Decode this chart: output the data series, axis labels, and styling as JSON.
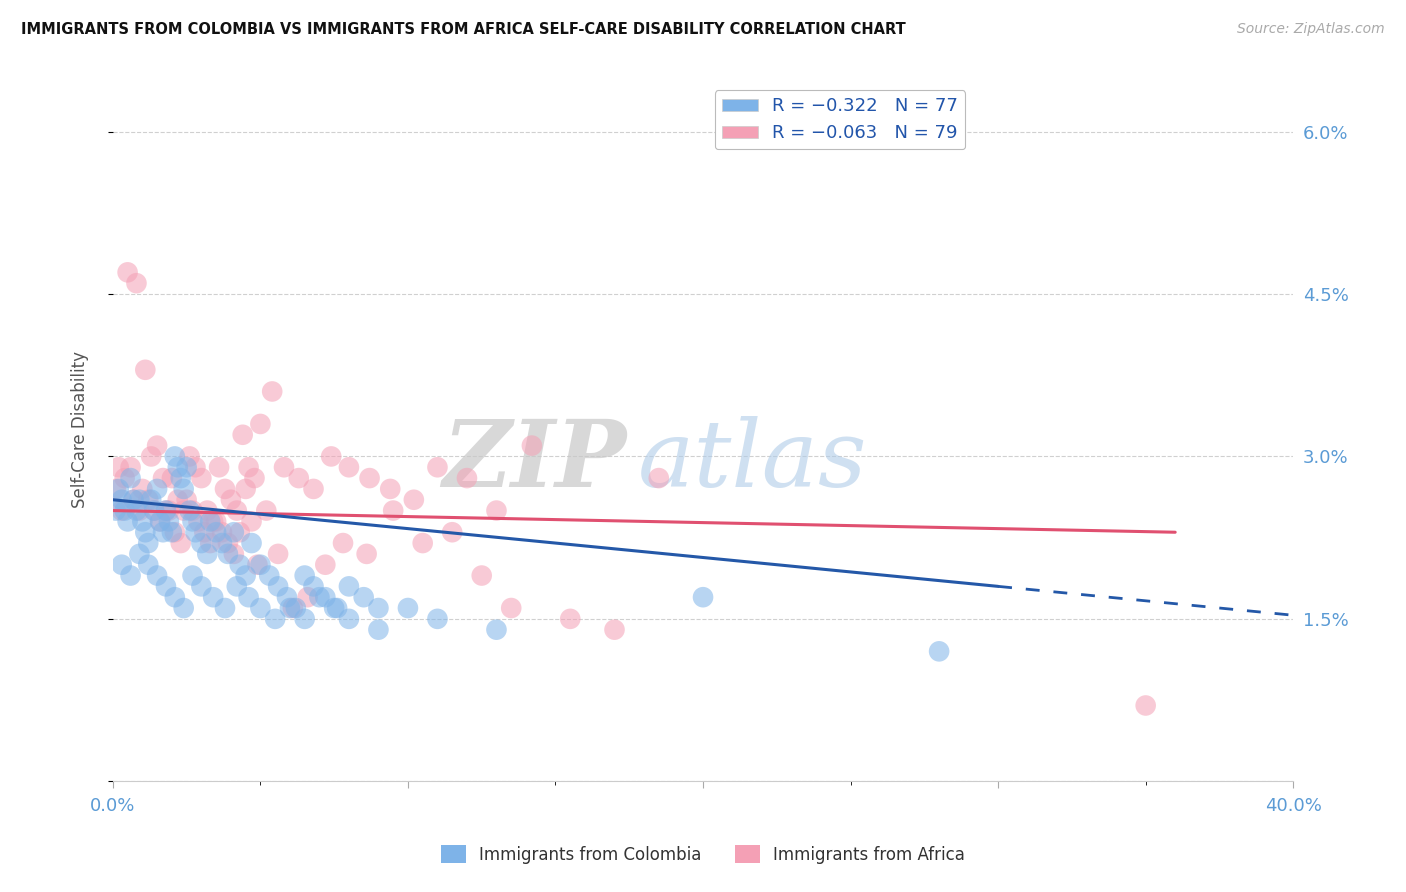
{
  "title": "IMMIGRANTS FROM COLOMBIA VS IMMIGRANTS FROM AFRICA SELF-CARE DISABILITY CORRELATION CHART",
  "source": "Source: ZipAtlas.com",
  "ylabel": "Self-Care Disability",
  "xlim": [
    0.0,
    0.4
  ],
  "ylim": [
    0.0,
    0.065
  ],
  "yticks": [
    0.0,
    0.015,
    0.03,
    0.045,
    0.06
  ],
  "yticklabels_right": [
    "",
    "1.5%",
    "3.0%",
    "4.5%",
    "6.0%"
  ],
  "legend_blue_text": "R = −0.322   N = 77",
  "legend_pink_text": "R = −0.063   N = 79",
  "color_blue": "#7eb3e8",
  "color_pink": "#f4a0b5",
  "color_line_blue": "#2458a8",
  "color_line_pink": "#e05070",
  "color_grid": "#cccccc",
  "color_axis_labels": "#5b9bd5",
  "colombia_x": [
    0.001,
    0.002,
    0.003,
    0.004,
    0.005,
    0.006,
    0.007,
    0.008,
    0.009,
    0.01,
    0.011,
    0.012,
    0.013,
    0.014,
    0.015,
    0.016,
    0.017,
    0.018,
    0.019,
    0.02,
    0.021,
    0.022,
    0.023,
    0.024,
    0.025,
    0.026,
    0.027,
    0.028,
    0.03,
    0.032,
    0.033,
    0.035,
    0.037,
    0.039,
    0.041,
    0.043,
    0.045,
    0.047,
    0.05,
    0.053,
    0.056,
    0.059,
    0.062,
    0.065,
    0.068,
    0.072,
    0.076,
    0.08,
    0.085,
    0.09,
    0.003,
    0.006,
    0.009,
    0.012,
    0.015,
    0.018,
    0.021,
    0.024,
    0.027,
    0.03,
    0.034,
    0.038,
    0.042,
    0.046,
    0.05,
    0.055,
    0.06,
    0.065,
    0.07,
    0.075,
    0.08,
    0.09,
    0.1,
    0.11,
    0.13,
    0.2,
    0.28
  ],
  "colombia_y": [
    0.025,
    0.027,
    0.026,
    0.025,
    0.024,
    0.028,
    0.026,
    0.025,
    0.026,
    0.024,
    0.023,
    0.022,
    0.026,
    0.025,
    0.027,
    0.024,
    0.023,
    0.025,
    0.024,
    0.023,
    0.03,
    0.029,
    0.028,
    0.027,
    0.029,
    0.025,
    0.024,
    0.023,
    0.022,
    0.021,
    0.024,
    0.023,
    0.022,
    0.021,
    0.023,
    0.02,
    0.019,
    0.022,
    0.02,
    0.019,
    0.018,
    0.017,
    0.016,
    0.019,
    0.018,
    0.017,
    0.016,
    0.018,
    0.017,
    0.016,
    0.02,
    0.019,
    0.021,
    0.02,
    0.019,
    0.018,
    0.017,
    0.016,
    0.019,
    0.018,
    0.017,
    0.016,
    0.018,
    0.017,
    0.016,
    0.015,
    0.016,
    0.015,
    0.017,
    0.016,
    0.015,
    0.014,
    0.016,
    0.015,
    0.014,
    0.017,
    0.012
  ],
  "africa_x": [
    0.001,
    0.003,
    0.004,
    0.006,
    0.007,
    0.009,
    0.01,
    0.012,
    0.014,
    0.016,
    0.018,
    0.02,
    0.022,
    0.024,
    0.026,
    0.028,
    0.03,
    0.032,
    0.034,
    0.036,
    0.038,
    0.04,
    0.042,
    0.044,
    0.046,
    0.048,
    0.05,
    0.054,
    0.058,
    0.063,
    0.068,
    0.074,
    0.08,
    0.087,
    0.094,
    0.102,
    0.11,
    0.12,
    0.13,
    0.142,
    0.002,
    0.005,
    0.008,
    0.011,
    0.013,
    0.015,
    0.017,
    0.019,
    0.021,
    0.023,
    0.025,
    0.027,
    0.029,
    0.031,
    0.033,
    0.035,
    0.037,
    0.039,
    0.041,
    0.043,
    0.045,
    0.047,
    0.049,
    0.052,
    0.056,
    0.061,
    0.066,
    0.072,
    0.078,
    0.086,
    0.095,
    0.105,
    0.115,
    0.125,
    0.135,
    0.155,
    0.17,
    0.185,
    0.35
  ],
  "africa_y": [
    0.027,
    0.025,
    0.028,
    0.029,
    0.026,
    0.025,
    0.027,
    0.026,
    0.025,
    0.024,
    0.025,
    0.028,
    0.026,
    0.025,
    0.03,
    0.029,
    0.028,
    0.025,
    0.024,
    0.029,
    0.027,
    0.026,
    0.025,
    0.032,
    0.029,
    0.028,
    0.033,
    0.036,
    0.029,
    0.028,
    0.027,
    0.03,
    0.029,
    0.028,
    0.027,
    0.026,
    0.029,
    0.028,
    0.025,
    0.031,
    0.029,
    0.047,
    0.046,
    0.038,
    0.03,
    0.031,
    0.028,
    0.025,
    0.023,
    0.022,
    0.026,
    0.025,
    0.024,
    0.023,
    0.022,
    0.024,
    0.023,
    0.022,
    0.021,
    0.023,
    0.027,
    0.024,
    0.02,
    0.025,
    0.021,
    0.016,
    0.017,
    0.02,
    0.022,
    0.021,
    0.025,
    0.022,
    0.023,
    0.019,
    0.016,
    0.015,
    0.014,
    0.028,
    0.007
  ],
  "line_blue_x0": 0.0,
  "line_blue_y0": 0.026,
  "line_blue_x1": 0.3,
  "line_blue_y1": 0.018,
  "line_blue_dash_x1": 0.4,
  "line_pink_x0": 0.0,
  "line_pink_y0": 0.025,
  "line_pink_x1": 0.36,
  "line_pink_y1": 0.023
}
